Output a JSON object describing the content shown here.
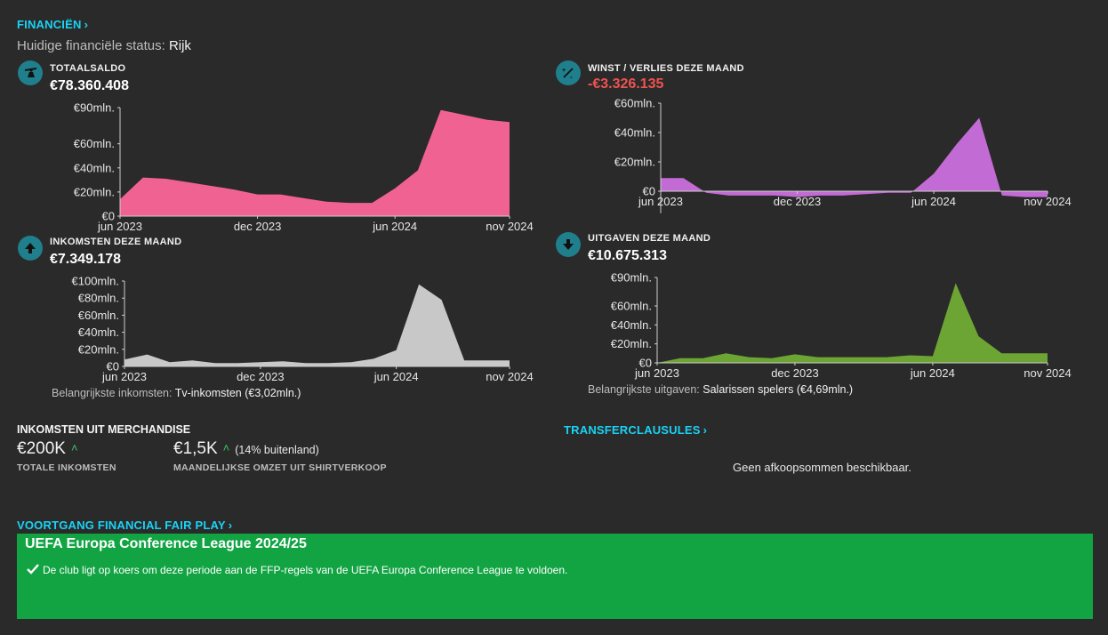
{
  "header": {
    "finance_link": "FINANCIËN",
    "status_label": "Huidige financiële status:",
    "status_value": "Rijk"
  },
  "colors": {
    "accent_link": "#19d3f5",
    "balance": "#f06292",
    "profit": "#c36bd4",
    "income": "#c8c8c8",
    "expenses": "#6da535",
    "negative": "#ef5350",
    "ffp_green": "#12a443"
  },
  "panels": {
    "balance": {
      "title": "TOTAALSALDO",
      "value": "€78.360.408",
      "icon": "balance-scale-icon"
    },
    "profit": {
      "title": "WINST / VERLIES DEZE MAAND",
      "value": "-€3.326.135",
      "icon": "percent-plus-minus-icon"
    },
    "income": {
      "title": "INKOMSTEN DEZE MAAND",
      "value": "€7.349.178",
      "icon": "arrow-up-icon",
      "note_label": "Belangrijkste inkomsten:",
      "note_value": "Tv-inkomsten (€3,02mln.)"
    },
    "expenses": {
      "title": "UITGAVEN DEZE MAAND",
      "value": "€10.675.313",
      "icon": "arrow-down-icon",
      "note_label": "Belangrijkste uitgaven:",
      "note_value": "Salarissen spelers (€4,69mln.)"
    }
  },
  "chart_data": [
    {
      "id": "balance",
      "type": "area",
      "x_tick_labels": [
        "jun 2023",
        "dec 2023",
        "jun 2024",
        "nov 2024"
      ],
      "x_tick_index": [
        0,
        6,
        12,
        17
      ],
      "y_tick_values": [
        0,
        20,
        40,
        60,
        90
      ],
      "y_tick_labels": [
        "€0",
        "€20mln.",
        "€40mln.",
        "€60mln.",
        "€90mln."
      ],
      "ylim": [
        0,
        90
      ],
      "values": [
        14,
        32,
        31,
        28,
        25,
        22,
        18,
        18,
        15,
        12,
        11,
        11,
        23,
        38,
        88,
        84,
        80,
        78
      ]
    },
    {
      "id": "profit",
      "type": "area",
      "x_tick_labels": [
        "jun 2023",
        "dec 2023",
        "jun 2024",
        "nov 2024"
      ],
      "x_tick_index": [
        0,
        6,
        12,
        17
      ],
      "y_tick_values": [
        0,
        20,
        40,
        60
      ],
      "y_tick_labels": [
        "€0",
        "€20mln.",
        "€40mln.",
        "€60mln."
      ],
      "ylim": [
        -15,
        60
      ],
      "values": [
        9,
        9,
        -1,
        -3,
        -3,
        -3,
        -4,
        -3,
        -3,
        -2,
        -1,
        -1,
        12,
        32,
        50,
        -3,
        -4,
        -4
      ]
    },
    {
      "id": "income",
      "type": "area",
      "x_tick_labels": [
        "jun 2023",
        "dec 2023",
        "jun 2024",
        "nov 2024"
      ],
      "x_tick_index": [
        0,
        6,
        12,
        17
      ],
      "y_tick_values": [
        0,
        20,
        40,
        60,
        80,
        100
      ],
      "y_tick_labels": [
        "€0",
        "€20mln.",
        "€40mln.",
        "€60mln.",
        "€80mln.",
        "€100mln."
      ],
      "ylim": [
        0,
        100
      ],
      "values": [
        8,
        14,
        5,
        7,
        4,
        4,
        5,
        6,
        4,
        4,
        5,
        9,
        19,
        96,
        78,
        7,
        7,
        7
      ]
    },
    {
      "id": "expenses",
      "type": "area",
      "x_tick_labels": [
        "jun 2023",
        "dec 2023",
        "jun 2024",
        "nov 2024"
      ],
      "x_tick_index": [
        0,
        6,
        12,
        17
      ],
      "y_tick_values": [
        0,
        20,
        40,
        60,
        90
      ],
      "y_tick_labels": [
        "€0",
        "€20mln.",
        "€40mln.",
        "€60mln.",
        "€90mln."
      ],
      "ylim": [
        0,
        90
      ],
      "values": [
        0,
        5,
        5,
        10,
        6,
        5,
        9,
        6,
        6,
        6,
        6,
        8,
        7,
        84,
        28,
        10,
        10,
        10
      ]
    }
  ],
  "merch": {
    "title": "INKOMSTEN UIT MERCHANDISE",
    "total_value": "€200K",
    "total_label": "TOTALE INKOMSTEN",
    "monthly_value": "€1,5K",
    "monthly_extra": "(14% buitenland)",
    "monthly_label": "MAANDELIJKSE OMZET UIT SHIRTVERKOOP"
  },
  "transfer": {
    "link": "TRANSFERCLAUSULES",
    "empty_message": "Geen afkoopsommen beschikbaar."
  },
  "ffp": {
    "link": "VOORTGANG FINANCIAL FAIR PLAY",
    "competition": "UEFA Europa Conference League 2024/25",
    "message": "De club ligt op koers om deze periode aan de FFP-regels van de UEFA Europa Conference League te voldoen."
  }
}
